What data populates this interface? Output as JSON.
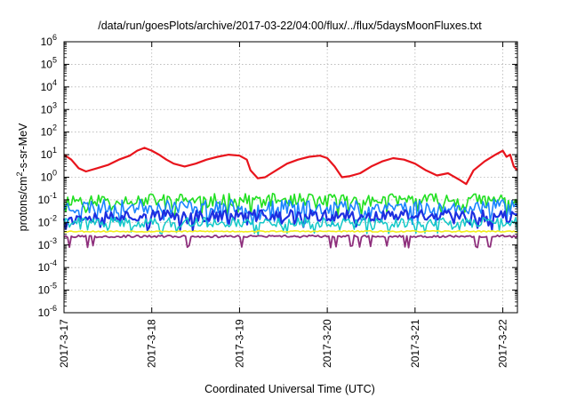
{
  "chart_data": {
    "type": "line",
    "title": "/data/run/goesPlots/archive/2017-03-22/04:00/flux/../flux/5daysMoonFluxes.txt",
    "xlabel": "Coordinated Universal Time (UTC)",
    "ylabel": {
      "prefix": "protons/cm",
      "sup": "2",
      "suffix": "-s-sr-MeV"
    },
    "yscale": "log",
    "ylim_exp": [
      -6,
      6
    ],
    "y_ticks": [
      {
        "base": "10",
        "exp": "6"
      },
      {
        "base": "10",
        "exp": "5"
      },
      {
        "base": "10",
        "exp": "4"
      },
      {
        "base": "10",
        "exp": "3"
      },
      {
        "base": "10",
        "exp": "2"
      },
      {
        "base": "10",
        "exp": "1"
      },
      {
        "base": "10",
        "exp": "0"
      },
      {
        "base": "10",
        "exp": "-1"
      },
      {
        "base": "10",
        "exp": "-2"
      },
      {
        "base": "10",
        "exp": "-3"
      },
      {
        "base": "10",
        "exp": "-4"
      },
      {
        "base": "10",
        "exp": "-5"
      },
      {
        "base": "10",
        "exp": "-6"
      }
    ],
    "xlim": [
      "2017-03-17 00:00",
      "2017-03-22 04:00"
    ],
    "x_ticks": [
      "2017-3-17",
      "2017-3-18",
      "2017-3-19",
      "2017-3-20",
      "2017-3-21",
      "2017-3-22"
    ],
    "grid": true,
    "legend": "none",
    "series": [
      {
        "color": "#e8141c",
        "width": 2.2,
        "points": [
          [
            "2017-03-17 00:00",
            10
          ],
          [
            "2017-03-17 02:00",
            6
          ],
          [
            "2017-03-17 04:00",
            2.5
          ],
          [
            "2017-03-17 06:00",
            1.8
          ],
          [
            "2017-03-17 09:00",
            2.5
          ],
          [
            "2017-03-17 12:00",
            3.5
          ],
          [
            "2017-03-17 15:00",
            6
          ],
          [
            "2017-03-17 18:00",
            9
          ],
          [
            "2017-03-17 20:00",
            15
          ],
          [
            "2017-03-17 22:00",
            20
          ],
          [
            "2017-03-18 00:00",
            15
          ],
          [
            "2017-03-18 02:00",
            10
          ],
          [
            "2017-03-18 04:00",
            6
          ],
          [
            "2017-03-18 06:00",
            4
          ],
          [
            "2017-03-18 09:00",
            3
          ],
          [
            "2017-03-18 12:00",
            4
          ],
          [
            "2017-03-18 15:00",
            6
          ],
          [
            "2017-03-18 18:00",
            8
          ],
          [
            "2017-03-18 21:00",
            10
          ],
          [
            "2017-03-19 00:00",
            9
          ],
          [
            "2017-03-19 02:00",
            6
          ],
          [
            "2017-03-19 03:00",
            2
          ],
          [
            "2017-03-19 05:00",
            0.9
          ],
          [
            "2017-03-19 07:00",
            1
          ],
          [
            "2017-03-19 10:00",
            2
          ],
          [
            "2017-03-19 13:00",
            4
          ],
          [
            "2017-03-19 16:00",
            6
          ],
          [
            "2017-03-19 19:00",
            8
          ],
          [
            "2017-03-19 22:00",
            9
          ],
          [
            "2017-03-20 00:00",
            7
          ],
          [
            "2017-03-20 02:00",
            3
          ],
          [
            "2017-03-20 04:00",
            1
          ],
          [
            "2017-03-20 06:00",
            1.1
          ],
          [
            "2017-03-20 09:00",
            1.5
          ],
          [
            "2017-03-20 12:00",
            3
          ],
          [
            "2017-03-20 15:00",
            5
          ],
          [
            "2017-03-20 18:00",
            7
          ],
          [
            "2017-03-20 21:00",
            6
          ],
          [
            "2017-03-21 00:00",
            4
          ],
          [
            "2017-03-21 03:00",
            2
          ],
          [
            "2017-03-21 06:00",
            1.2
          ],
          [
            "2017-03-21 09:00",
            1.5
          ],
          [
            "2017-03-21 12:00",
            0.8
          ],
          [
            "2017-03-21 14:00",
            0.5
          ],
          [
            "2017-03-21 16:00",
            2
          ],
          [
            "2017-03-21 19:00",
            5
          ],
          [
            "2017-03-21 22:00",
            10
          ],
          [
            "2017-03-22 00:00",
            15
          ],
          [
            "2017-03-22 01:00",
            8
          ],
          [
            "2017-03-22 02:00",
            10
          ],
          [
            "2017-03-22 03:00",
            3
          ],
          [
            "2017-03-22 04:00",
            2
          ]
        ]
      },
      {
        "color": "#22e022",
        "width": 1.6,
        "baseline": 0.1,
        "spread": 0.28,
        "seed": 11
      },
      {
        "color": "#1a84ff",
        "width": 1.6,
        "baseline": 0.05,
        "spread": 0.32,
        "seed": 23
      },
      {
        "color": "#1d2ee0",
        "width": 2.2,
        "baseline": 0.02,
        "spread": 0.26,
        "seed": 37
      },
      {
        "color": "#13c8c8",
        "width": 1.5,
        "baseline": 0.01,
        "spread": 0.22,
        "seed": 41
      },
      {
        "color": "#f2ee1a",
        "width": 1.6,
        "baseline": 0.004,
        "spread": 0.03,
        "seed": 53
      },
      {
        "color": "#8e2f7c",
        "width": 1.8,
        "baseline": 0.0024,
        "spread": 0.05,
        "seed": 67,
        "dips": true
      }
    ]
  }
}
